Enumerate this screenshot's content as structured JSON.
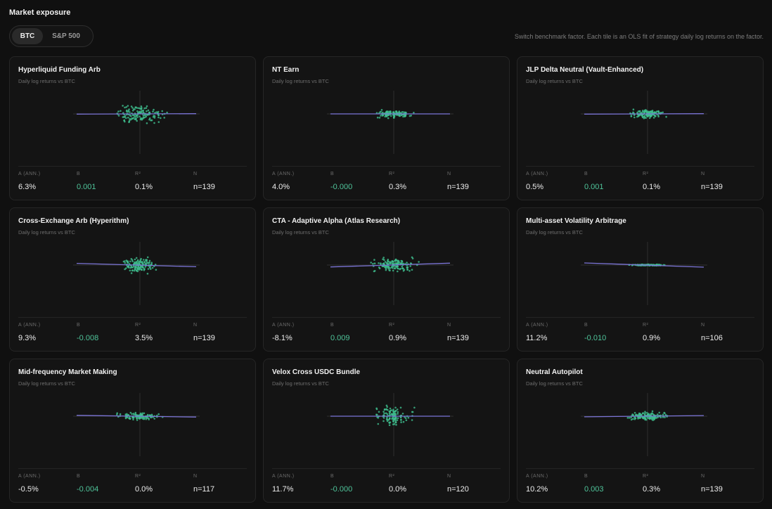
{
  "header": {
    "title": "Market exposure",
    "hint": "Switch benchmark factor. Each tile is an OLS fit of strategy daily log returns on the factor."
  },
  "toggle": {
    "options": [
      {
        "label": "BTC",
        "active": true
      },
      {
        "label": "S&P 500",
        "active": false
      }
    ]
  },
  "stat_labels": {
    "alpha": "A (ANN.)",
    "beta": "B",
    "r2": "R²",
    "n": "N"
  },
  "colors": {
    "point": "#3fbf8f",
    "fit": "#7b74d6",
    "axis": "#3a3a3a",
    "beta": "#4fc49a"
  },
  "tiles": [
    {
      "title": "Hyperliquid Funding Arb",
      "subtitle": "Daily log returns vs BTC",
      "alpha": "6.3%",
      "beta": "0.001",
      "r2": "0.1%",
      "n": "n=139",
      "chart_data": {
        "type": "scatter",
        "fit_slope": 0.001,
        "spread_x": 1.0,
        "spread_y": 0.45,
        "count": 139
      }
    },
    {
      "title": "NT Earn",
      "subtitle": "Daily log returns vs BTC",
      "alpha": "4.0%",
      "beta": "-0.000",
      "r2": "0.3%",
      "n": "n=139",
      "chart_data": {
        "type": "scatter",
        "fit_slope": -0.0,
        "spread_x": 0.8,
        "spread_y": 0.18,
        "count": 139
      }
    },
    {
      "title": "JLP Delta Neutral (Vault-Enhanced)",
      "subtitle": "Daily log returns vs BTC",
      "alpha": "0.5%",
      "beta": "0.001",
      "r2": "0.1%",
      "n": "n=139",
      "chart_data": {
        "type": "scatter",
        "fit_slope": 0.001,
        "spread_x": 0.7,
        "spread_y": 0.22,
        "count": 139
      }
    },
    {
      "title": "Cross-Exchange Arb (Hyperithm)",
      "subtitle": "Daily log returns vs BTC",
      "alpha": "9.3%",
      "beta": "-0.008",
      "r2": "3.5%",
      "n": "n=139",
      "chart_data": {
        "type": "scatter",
        "fit_slope": -0.008,
        "spread_x": 0.8,
        "spread_y": 0.35,
        "count": 139
      }
    },
    {
      "title": "CTA - Adaptive Alpha (Atlas Research)",
      "subtitle": "Daily log returns vs BTC",
      "alpha": "-8.1%",
      "beta": "0.009",
      "r2": "0.9%",
      "n": "n=139",
      "chart_data": {
        "type": "scatter",
        "fit_slope": 0.009,
        "spread_x": 0.9,
        "spread_y": 0.35,
        "count": 139
      }
    },
    {
      "title": "Multi-asset Volatility Arbitrage",
      "subtitle": "Daily log returns vs BTC",
      "alpha": "11.2%",
      "beta": "-0.010",
      "r2": "0.9%",
      "n": "n=106",
      "chart_data": {
        "type": "scatter",
        "fit_slope": -0.01,
        "spread_x": 0.8,
        "spread_y": 0.03,
        "count": 106
      }
    },
    {
      "title": "Mid-frequency Market Making",
      "subtitle": "Daily log returns vs BTC",
      "alpha": "-0.5%",
      "beta": "-0.004",
      "r2": "0.0%",
      "n": "n=117",
      "chart_data": {
        "type": "scatter",
        "fit_slope": -0.004,
        "spread_x": 0.85,
        "spread_y": 0.15,
        "count": 117
      }
    },
    {
      "title": "Velox Cross USDC Bundle",
      "subtitle": "Daily log returns vs BTC",
      "alpha": "11.7%",
      "beta": "-0.000",
      "r2": "0.0%",
      "n": "n=120",
      "chart_data": {
        "type": "scatter",
        "fit_slope": -0.0,
        "spread_x": 0.8,
        "spread_y": 0.45,
        "count": 120
      }
    },
    {
      "title": "Neutral Autopilot",
      "subtitle": "Daily log returns vs BTC",
      "alpha": "10.2%",
      "beta": "0.003",
      "r2": "0.3%",
      "n": "n=139",
      "chart_data": {
        "type": "scatter",
        "fit_slope": 0.003,
        "spread_x": 0.8,
        "spread_y": 0.2,
        "count": 139
      }
    }
  ]
}
